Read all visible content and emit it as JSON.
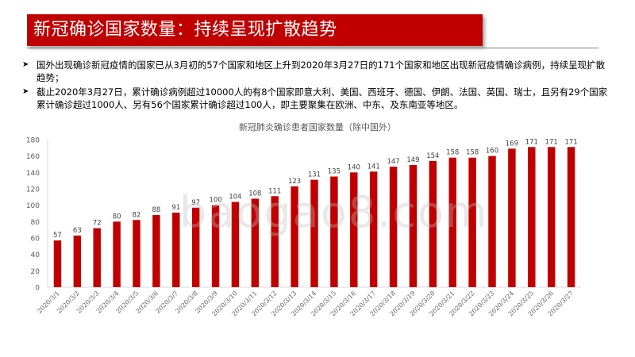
{
  "header": {
    "title": "新冠确诊国家数量：持续呈现扩散趋势"
  },
  "bullets": [
    "国外出现确诊新冠疫情的国家已从3月初的57个国家和地区上升到2020年3月27日的171个国家和地区出现新冠疫情确诊病例，持续呈现扩散趋势；",
    "截止2020年3月27日，累计确诊病例超过10000人的有8个国家即意大利、美国、西班牙、德国、伊朗、法国、英国、瑞士，且另有29个国家累计确诊超过1000人、另有56个国家累计确诊超过100人，即主要聚集在欧洲、中东、及东南亚等地区。"
  ],
  "bullet_marker": "➤",
  "watermark": "baogao8.com",
  "colors": {
    "accent": "#C00000",
    "bar": "#C00000"
  },
  "chart_data": {
    "type": "bar",
    "title": "新冠肺炎确诊患者国家数量（除中国外）",
    "xlabel": "",
    "ylabel": "",
    "ylim": [
      0,
      180
    ],
    "yticks": [
      0,
      20,
      40,
      60,
      80,
      100,
      120,
      140,
      160,
      180
    ],
    "categories": [
      "2020/3/1",
      "2020/3/2",
      "2020/3/3",
      "2020/3/4",
      "2020/3/5",
      "2020/3/6",
      "2020/3/7",
      "2020/3/8",
      "2020/3/9",
      "2020/3/10",
      "2020/3/11",
      "2020/3/12",
      "2020/3/13",
      "2020/3/14",
      "2020/3/15",
      "2020/3/16",
      "2020/3/17",
      "2020/3/18",
      "2020/3/19",
      "2020/3/20",
      "2020/3/21",
      "2020/3/22",
      "2020/3/23",
      "2020/3/24",
      "2020/3/25",
      "2020/3/26",
      "2020/3/27"
    ],
    "values": [
      57,
      63,
      72,
      80,
      82,
      88,
      91,
      97,
      100,
      104,
      108,
      111,
      123,
      131,
      135,
      140,
      141,
      147,
      149,
      154,
      158,
      158,
      160,
      169,
      171,
      171,
      171
    ]
  }
}
